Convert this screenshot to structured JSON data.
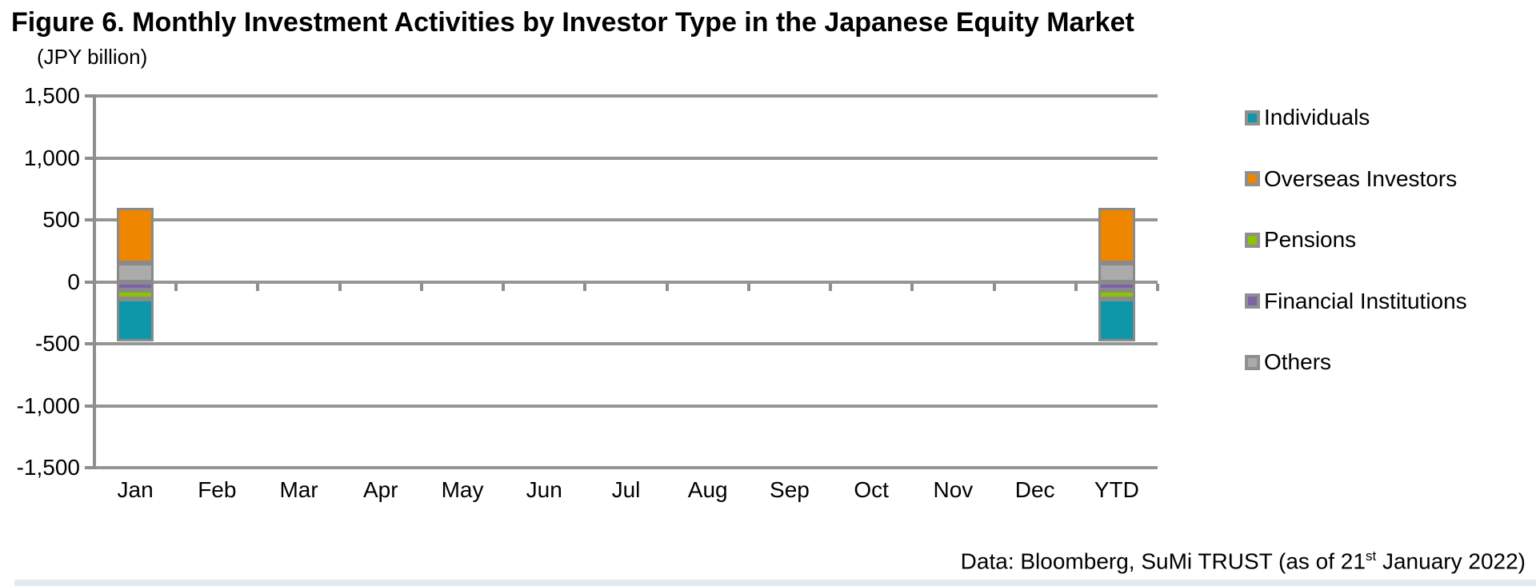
{
  "title": "Figure 6. Monthly Investment Activities by Investor Type in the Japanese Equity Market",
  "unit_label": "(JPY billion)",
  "footer": {
    "prefix": "Data: Bloomberg, SuMi TRUST (as of 21",
    "superscript": "st",
    "suffix": " January 2022)"
  },
  "colors": {
    "gridline": "#959595",
    "axis": "#8e8e8e",
    "bar_outline": "#8a8a8a",
    "legend_swatch_border": "#8f8f8f",
    "bottom_strip": "#e4eaf1"
  },
  "chart_data": {
    "type": "bar",
    "subtype": "stacked-bar",
    "title": "Figure 6. Monthly Investment Activities by Investor Type in the Japanese Equity Market",
    "unit": "JPY billion",
    "categories": [
      "Jan",
      "Feb",
      "Mar",
      "Apr",
      "May",
      "Jun",
      "Jul",
      "Aug",
      "Sep",
      "Oct",
      "Nov",
      "Dec",
      "YTD"
    ],
    "series": [
      {
        "name": "Individuals",
        "color": "#0e97a9",
        "values": [
          -340,
          0,
          0,
          0,
          0,
          0,
          0,
          0,
          0,
          0,
          0,
          0,
          -340
        ]
      },
      {
        "name": "Overseas Investors",
        "color": "#ee8600",
        "values": [
          450,
          0,
          0,
          0,
          0,
          0,
          0,
          0,
          0,
          0,
          0,
          0,
          450
        ]
      },
      {
        "name": "Pensions",
        "color": "#8cc400",
        "values": [
          -75,
          0,
          0,
          0,
          0,
          0,
          0,
          0,
          0,
          0,
          0,
          0,
          -75
        ]
      },
      {
        "name": "Financial Institutions",
        "color": "#7d63a5",
        "values": [
          -65,
          0,
          0,
          0,
          0,
          0,
          0,
          0,
          0,
          0,
          0,
          0,
          -65
        ]
      },
      {
        "name": "Others",
        "color": "#ababab",
        "values": [
          150,
          0,
          0,
          0,
          0,
          0,
          0,
          0,
          0,
          0,
          0,
          0,
          150
        ]
      }
    ],
    "stack_order_from_zero": {
      "positive": [
        "Others",
        "Overseas Investors"
      ],
      "negative": [
        "Financial Institutions",
        "Pensions",
        "Individuals"
      ]
    },
    "ylim": [
      -1500,
      1500
    ],
    "yticks": [
      1500,
      1000,
      500,
      0,
      -500,
      -1000,
      -1500
    ],
    "ytick_labels": [
      "1,500",
      "1,000",
      "500",
      "0",
      "-500",
      "-1,000",
      "-1,500"
    ],
    "grid": true,
    "legend_position": "right"
  }
}
